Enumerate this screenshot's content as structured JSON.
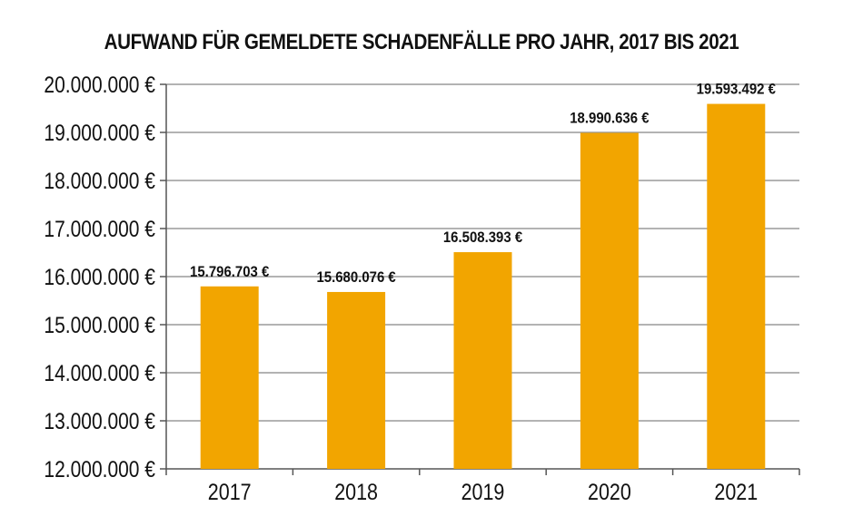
{
  "chart_data": {
    "type": "bar",
    "title": "AUFWAND FÜR GEMELDETE SCHADENFÄLLE PRO JAHR, 2017 BIS 2021",
    "xlabel": "",
    "ylabel": "",
    "categories": [
      "2017",
      "2018",
      "2019",
      "2020",
      "2021"
    ],
    "values": [
      15796703,
      15680076,
      16508393,
      18990636,
      19593492
    ],
    "value_labels": [
      "15.796.703 €",
      "15.680.076 €",
      "16.508.393 €",
      "18.990.636 €",
      "19.593.492 €"
    ],
    "ylim": [
      12000000,
      20000000
    ],
    "yticks": [
      12000000,
      13000000,
      14000000,
      15000000,
      16000000,
      17000000,
      18000000,
      19000000,
      20000000
    ],
    "ytick_labels": [
      "12.000.000 €",
      "13.000.000 €",
      "14.000.000 €",
      "15.000.000 €",
      "16.000.000 €",
      "17.000.000 €",
      "18.000.000 €",
      "19.000.000 €",
      "20.000.000 €"
    ],
    "grid": true,
    "legend": "none",
    "colors": {
      "bar": "#f2a500",
      "grid": "#9a9a9a",
      "axis": "#555555",
      "text": "#111111"
    }
  }
}
